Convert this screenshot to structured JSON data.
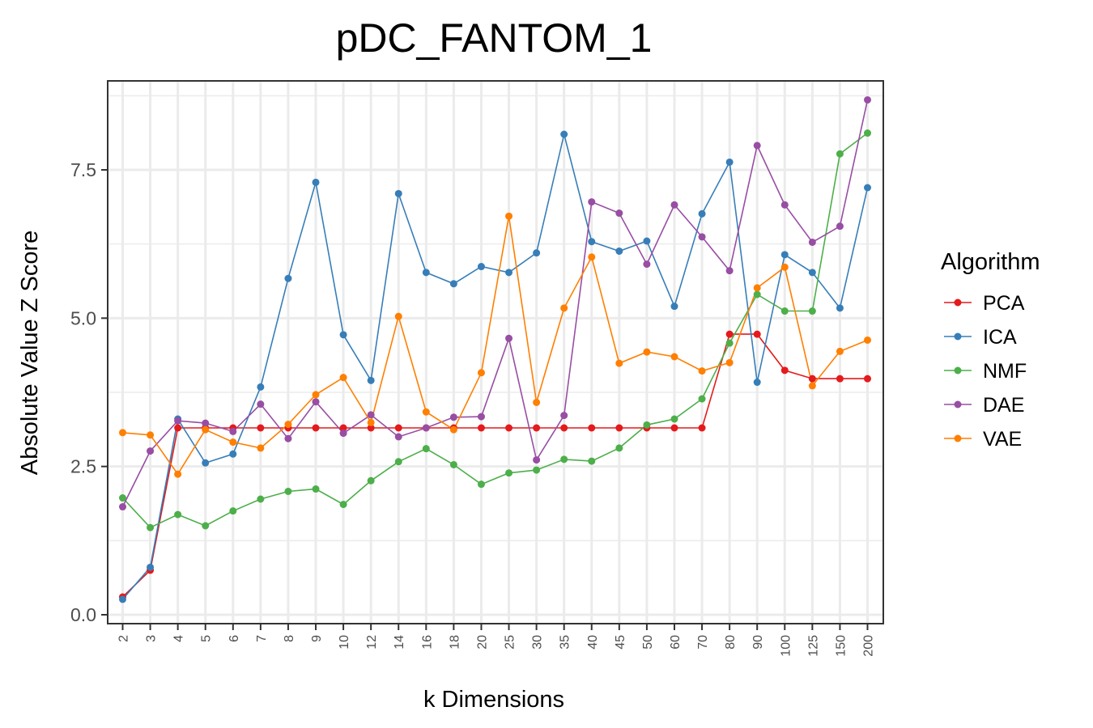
{
  "chart_data": {
    "type": "line",
    "title": "pDC_FANTOM_1",
    "xlabel": "k Dimensions",
    "ylabel": "Absolute Value Z Score",
    "categories": [
      "2",
      "3",
      "4",
      "5",
      "6",
      "7",
      "8",
      "9",
      "10",
      "12",
      "14",
      "16",
      "18",
      "20",
      "25",
      "30",
      "35",
      "40",
      "45",
      "50",
      "60",
      "70",
      "80",
      "90",
      "100",
      "125",
      "150",
      "200"
    ],
    "yticks": [
      "0.0",
      "2.5",
      "5.0",
      "7.5"
    ],
    "yticks_values": [
      0,
      2.5,
      5.0,
      7.5
    ],
    "ylim": [
      -0.15,
      9.0
    ],
    "grid": true,
    "legend": {
      "title": "Algorithm",
      "position": "right"
    },
    "series": [
      {
        "name": "PCA",
        "color": "#e41a1c",
        "values": [
          0.3,
          0.75,
          3.15,
          3.15,
          3.15,
          3.15,
          3.15,
          3.15,
          3.15,
          3.15,
          3.15,
          3.15,
          3.15,
          3.15,
          3.15,
          3.15,
          3.15,
          3.15,
          3.15,
          3.15,
          3.15,
          3.15,
          4.73,
          4.73,
          4.12,
          3.98,
          3.98,
          3.98
        ]
      },
      {
        "name": "ICA",
        "color": "#377eb8",
        "values": [
          0.26,
          0.8,
          3.3,
          2.56,
          2.71,
          3.84,
          5.67,
          7.29,
          4.72,
          3.95,
          7.1,
          5.77,
          5.58,
          5.87,
          5.77,
          6.1,
          8.1,
          6.29,
          6.13,
          6.3,
          5.2,
          6.76,
          7.63,
          3.92,
          6.07,
          5.77,
          5.17,
          7.2
        ]
      },
      {
        "name": "NMF",
        "color": "#4daf4a",
        "values": [
          1.97,
          1.47,
          1.69,
          1.5,
          1.75,
          1.95,
          2.08,
          2.12,
          1.86,
          2.26,
          2.58,
          2.8,
          2.53,
          2.2,
          2.39,
          2.44,
          2.62,
          2.59,
          2.81,
          3.2,
          3.3,
          3.64,
          4.58,
          5.4,
          5.12,
          5.12,
          7.77,
          8.12
        ]
      },
      {
        "name": "DAE",
        "color": "#984ea3",
        "values": [
          1.82,
          2.76,
          3.27,
          3.23,
          3.09,
          3.55,
          2.97,
          3.59,
          3.06,
          3.37,
          3.0,
          3.15,
          3.33,
          3.34,
          4.66,
          2.61,
          3.36,
          6.96,
          6.77,
          5.91,
          6.91,
          6.37,
          5.8,
          7.91,
          6.91,
          6.28,
          6.55,
          8.68
        ]
      },
      {
        "name": "VAE",
        "color": "#ff7f00",
        "values": [
          3.07,
          3.03,
          2.37,
          3.12,
          2.91,
          2.81,
          3.21,
          3.71,
          4.0,
          3.24,
          5.03,
          3.42,
          3.12,
          4.08,
          6.72,
          3.58,
          5.17,
          6.03,
          4.24,
          4.43,
          4.35,
          4.11,
          4.25,
          5.51,
          5.86,
          3.86,
          4.44,
          4.63
        ]
      }
    ]
  }
}
